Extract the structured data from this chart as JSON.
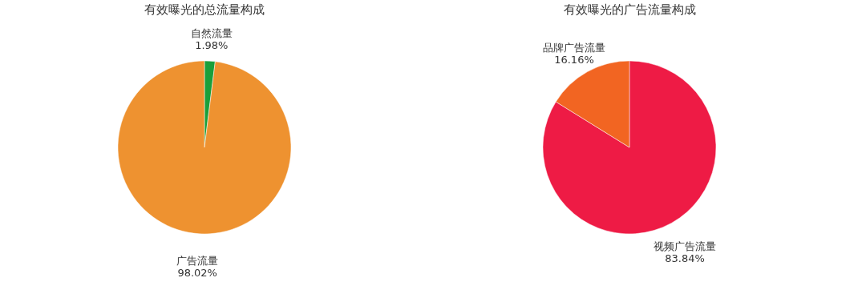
{
  "chart_data": [
    {
      "type": "pie",
      "title": "有效曝光的总流量构成",
      "categories": [
        "自然流量",
        "广告流量"
      ],
      "values": [
        1.98,
        98.02
      ],
      "colors": [
        "#1a9f3a",
        "#ee9230"
      ],
      "value_labels": [
        "1.98%",
        "98.02%"
      ]
    },
    {
      "type": "pie",
      "title": "有效曝光的广告流量构成",
      "categories": [
        "视频广告流量",
        "品牌广告流量"
      ],
      "values": [
        83.84,
        16.16
      ],
      "colors": [
        "#ee1b45",
        "#f26522"
      ],
      "value_labels": [
        "83.84%",
        "16.16%"
      ]
    }
  ]
}
